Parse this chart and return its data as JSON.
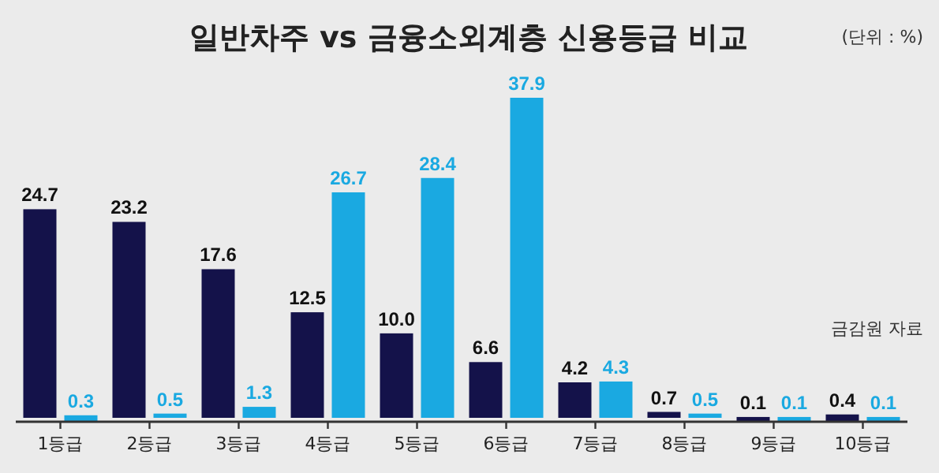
{
  "chart_data": {
    "type": "bar",
    "title": "일반차주 vs 금융소외계층 신용등급 비교",
    "annotations": [
      "(단위 : %)",
      "금감원 자료"
    ],
    "categories": [
      "1등급",
      "2등급",
      "3등급",
      "4등급",
      "5등급",
      "6등급",
      "7등급",
      "8등급",
      "9등급",
      "10등급"
    ],
    "series": [
      {
        "color": "#14124a",
        "values": [
          24.7,
          23.2,
          17.6,
          12.5,
          10.0,
          6.6,
          4.2,
          0.7,
          0.1,
          0.4
        ],
        "value_labels": [
          "24.7",
          "23.2",
          "17.6",
          "12.5",
          "10.0",
          "6.6",
          "4.2",
          "0.7",
          "0.1",
          "0.4"
        ]
      },
      {
        "color": "#1aa9e1",
        "values": [
          0.3,
          0.5,
          1.3,
          26.7,
          28.4,
          37.9,
          4.3,
          0.5,
          0.1,
          0.1
        ],
        "value_labels": [
          "0.3",
          "0.5",
          "1.3",
          "26.7",
          "28.4",
          "37.9",
          "4.3",
          "0.5",
          "0.1",
          "0.1"
        ]
      }
    ]
  }
}
